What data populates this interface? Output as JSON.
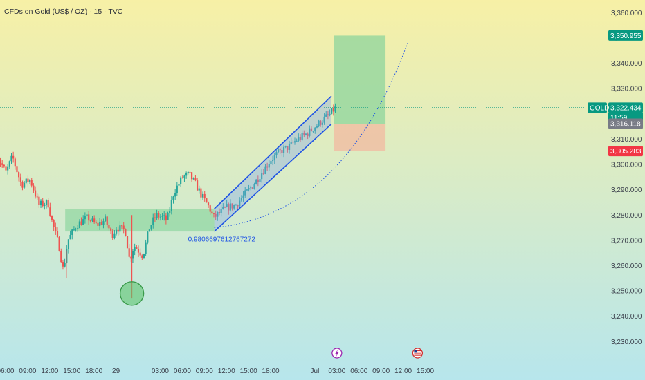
{
  "header": {
    "title": "CFDs on Gold (US$ / OZ) · 15 · TVC"
  },
  "colors": {
    "bg_top": "#f7f0a6",
    "bg_bottom": "#b7e6ec",
    "up": "#26a69a",
    "down": "#ef5350",
    "zone": "#7ccf94",
    "channel": "#1e53e5",
    "tp": "#8ed49c",
    "sl": "#f2b9a0",
    "price_badge": "#089981",
    "sl_badge": "#f23645",
    "entry_badge": "#787b86"
  },
  "chart_data": {
    "type": "candlestick",
    "instrument": "CFDs on Gold (US$ / OZ)",
    "timeframe": "15",
    "source": "TVC",
    "y_axis": {
      "range": [
        3223,
        3365
      ],
      "ticks": [
        3230,
        3240,
        3250,
        3260,
        3270,
        3280,
        3290,
        3300,
        3310,
        3320,
        3330,
        3340,
        3350,
        3360
      ],
      "tick_labels": [
        "3,230.000",
        "3,240.000",
        "3,250.000",
        "3,260.000",
        "3,270.000",
        "3,280.000",
        "3,290.000",
        "3,300.000",
        "3,310.000",
        "3,320.000",
        "3,330.000",
        "3,340.000",
        "3,350.000",
        "3,360.000"
      ]
    },
    "x_axis": {
      "range": [
        -0.25,
        26.25
      ],
      "unit": "hours from Jun 28 03:00",
      "ticks": [
        0,
        1,
        2,
        3,
        4,
        5,
        7,
        8,
        9,
        10,
        11,
        12,
        14,
        15,
        16,
        17,
        18,
        19
      ],
      "tick_labels": [
        "06:00",
        "09:00",
        "12:00",
        "15:00",
        "18:00",
        "29",
        "03:00",
        "06:00",
        "09:00",
        "12:00",
        "15:00",
        "18:00",
        "Jul",
        "03:00",
        "06:00",
        "09:00",
        "12:00",
        "15:00"
      ]
    },
    "candles_path": [
      [
        -0.4,
        3305
      ],
      [
        0.1,
        3297
      ],
      [
        0.4,
        3303
      ],
      [
        0.8,
        3292
      ],
      [
        1.2,
        3294
      ],
      [
        1.6,
        3284
      ],
      [
        2.0,
        3285
      ],
      [
        2.2,
        3277
      ],
      [
        2.5,
        3268
      ],
      [
        2.7,
        3258
      ],
      [
        2.9,
        3270
      ],
      [
        3.3,
        3276
      ],
      [
        3.8,
        3279
      ],
      [
        4.2,
        3276
      ],
      [
        4.6,
        3278
      ],
      [
        4.9,
        3272
      ],
      [
        5.1,
        3275
      ],
      [
        5.5,
        3274
      ],
      [
        5.7,
        3262
      ],
      [
        5.9,
        3268
      ],
      [
        6.3,
        3264
      ],
      [
        6.6,
        3275
      ],
      [
        6.9,
        3280
      ],
      [
        7.2,
        3279
      ],
      [
        7.4,
        3278
      ],
      [
        7.7,
        3289
      ],
      [
        8.1,
        3295
      ],
      [
        8.4,
        3296
      ],
      [
        8.7,
        3292
      ],
      [
        9.0,
        3287
      ],
      [
        9.3,
        3283
      ],
      [
        9.5,
        3279
      ],
      [
        9.8,
        3281
      ],
      [
        10.1,
        3283
      ],
      [
        10.5,
        3284
      ],
      [
        10.9,
        3288
      ],
      [
        11.3,
        3292
      ],
      [
        11.7,
        3297
      ],
      [
        12.1,
        3302
      ],
      [
        12.5,
        3305
      ],
      [
        12.9,
        3307
      ],
      [
        13.3,
        3310
      ],
      [
        13.7,
        3312
      ],
      [
        14.1,
        3315
      ],
      [
        14.5,
        3318
      ],
      [
        14.8,
        3320
      ],
      [
        15.0,
        3322.4
      ]
    ],
    "wicks": [
      {
        "t": 5.72,
        "low": 3247,
        "high": 3280
      },
      {
        "t": 2.75,
        "low": 3255,
        "high": 3266
      }
    ],
    "last_price": {
      "label": "GOLD",
      "value": "3,322.434",
      "countdown": "11:59",
      "price": 3322.434
    },
    "entry": {
      "value": "3,316.118",
      "price": 3316.118
    },
    "stop_loss": {
      "value": "3,305.283",
      "price": 3305.283
    },
    "take_profit": {
      "value": "3,350.955",
      "price": 3350.955
    },
    "position": {
      "t_start": 14.85,
      "t_end": 17.2,
      "entry": 3316.118,
      "stop": 3305.283,
      "target": 3350.955
    },
    "zone": {
      "t_start": 2.7,
      "t_end": 9.45,
      "low": 3273.5,
      "high": 3282.5
    },
    "channel": {
      "lower": [
        [
          9.45,
          3273.5
        ],
        [
          14.75,
          3316
        ]
      ],
      "upper": [
        [
          9.45,
          3282.5
        ],
        [
          14.75,
          3327
        ]
      ]
    },
    "fib_curve": {
      "label": "0.9806697612767272",
      "t_start": 9.45,
      "t_mid": 12.5,
      "p_start": 3275,
      "p_mid": 3281,
      "t_end": 18.2,
      "p_end": 3348
    },
    "circle": {
      "t": 5.72,
      "price": 3249
    },
    "events": [
      {
        "icon": "lightning-icon",
        "t": 15.0
      },
      {
        "icon": "us-flag-icon",
        "t": 18.65
      }
    ]
  }
}
